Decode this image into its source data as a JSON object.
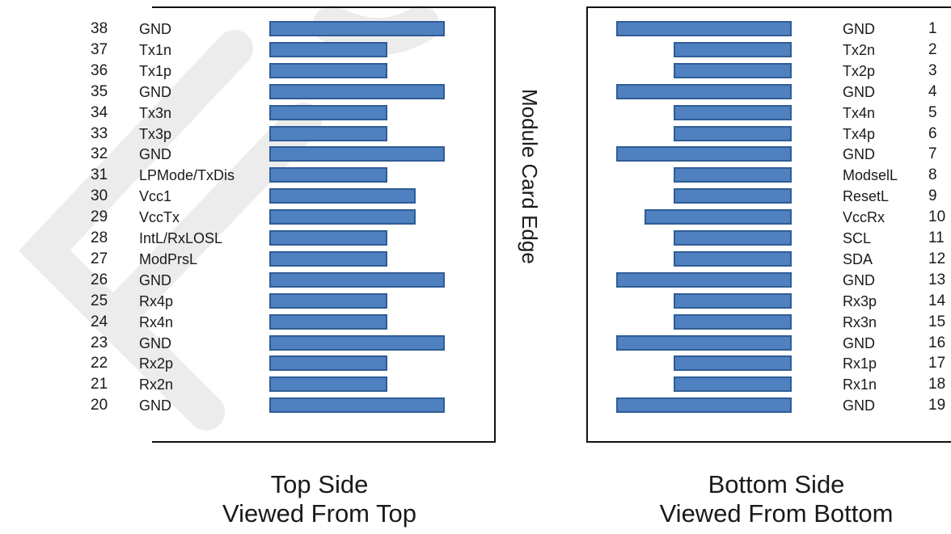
{
  "edge_label": "Module Card Edge",
  "top_side": {
    "caption_line1": "Top Side",
    "caption_line2": "Viewed From Top",
    "pins": [
      {
        "num": "38",
        "name": "GND",
        "pad": "long"
      },
      {
        "num": "37",
        "name": "Tx1n",
        "pad": "short"
      },
      {
        "num": "36",
        "name": "Tx1p",
        "pad": "short"
      },
      {
        "num": "35",
        "name": "GND",
        "pad": "long"
      },
      {
        "num": "34",
        "name": "Tx3n",
        "pad": "short"
      },
      {
        "num": "33",
        "name": "Tx3p",
        "pad": "short"
      },
      {
        "num": "32",
        "name": "GND",
        "pad": "long"
      },
      {
        "num": "31",
        "name": "LPMode/TxDis",
        "pad": "short"
      },
      {
        "num": "30",
        "name": "Vcc1",
        "pad": "medium"
      },
      {
        "num": "29",
        "name": "VccTx",
        "pad": "medium"
      },
      {
        "num": "28",
        "name": "IntL/RxLOSL",
        "pad": "short"
      },
      {
        "num": "27",
        "name": "ModPrsL",
        "pad": "short"
      },
      {
        "num": "26",
        "name": "GND",
        "pad": "long"
      },
      {
        "num": "25",
        "name": "Rx4p",
        "pad": "short"
      },
      {
        "num": "24",
        "name": "Rx4n",
        "pad": "short"
      },
      {
        "num": "23",
        "name": "GND",
        "pad": "long"
      },
      {
        "num": "22",
        "name": "Rx2p",
        "pad": "short"
      },
      {
        "num": "21",
        "name": "Rx2n",
        "pad": "short"
      },
      {
        "num": "20",
        "name": "GND",
        "pad": "long"
      }
    ]
  },
  "bottom_side": {
    "caption_line1": "Bottom Side",
    "caption_line2": "Viewed From Bottom",
    "pins": [
      {
        "num": "1",
        "name": "GND",
        "pad": "long"
      },
      {
        "num": "2",
        "name": "Tx2n",
        "pad": "short"
      },
      {
        "num": "3",
        "name": "Tx2p",
        "pad": "short"
      },
      {
        "num": "4",
        "name": "GND",
        "pad": "long"
      },
      {
        "num": "5",
        "name": "Tx4n",
        "pad": "short"
      },
      {
        "num": "6",
        "name": "Tx4p",
        "pad": "short"
      },
      {
        "num": "7",
        "name": "GND",
        "pad": "long"
      },
      {
        "num": "8",
        "name": "ModselL",
        "pad": "short"
      },
      {
        "num": "9",
        "name": "ResetL",
        "pad": "short"
      },
      {
        "num": "10",
        "name": "VccRx",
        "pad": "medium"
      },
      {
        "num": "11",
        "name": "SCL",
        "pad": "short"
      },
      {
        "num": "12",
        "name": "SDA",
        "pad": "short"
      },
      {
        "num": "13",
        "name": "GND",
        "pad": "long"
      },
      {
        "num": "14",
        "name": "Rx3p",
        "pad": "short"
      },
      {
        "num": "15",
        "name": "Rx3n",
        "pad": "short"
      },
      {
        "num": "16",
        "name": "GND",
        "pad": "long"
      },
      {
        "num": "17",
        "name": "Rx1p",
        "pad": "short"
      },
      {
        "num": "18",
        "name": "Rx1n",
        "pad": "short"
      },
      {
        "num": "19",
        "name": "GND",
        "pad": "long"
      }
    ]
  },
  "colors": {
    "pad_fill": "#4f80c0",
    "pad_border": "#2f5d96",
    "watermark": "#ededed"
  }
}
